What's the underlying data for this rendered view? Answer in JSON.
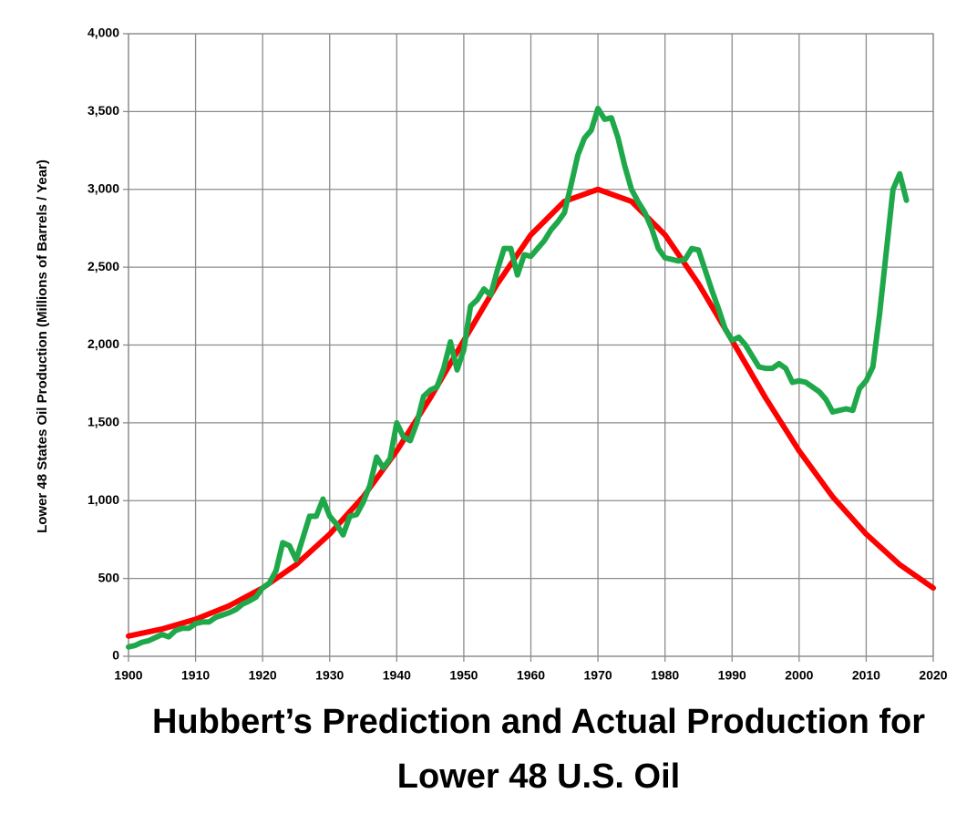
{
  "chart_data": {
    "type": "line",
    "title": "Hubbert’s Prediction and Actual Production for Lower 48 U.S. Oil",
    "ylabel": "Lower 48 States Oil Production (Millions of Barrels / Year)",
    "xlim": [
      1900,
      2020
    ],
    "xticks": [
      1900,
      1910,
      1920,
      1930,
      1940,
      1950,
      1960,
      1970,
      1980,
      1990,
      2000,
      2010,
      2020
    ],
    "ylim": [
      0,
      4000
    ],
    "yticks": [
      0,
      500,
      {
        "value": 1000,
        "label": "1,000"
      },
      {
        "value": 1500,
        "label": "1,500"
      },
      {
        "value": 2000,
        "label": "2,000"
      },
      {
        "value": 2500,
        "label": "2,500"
      },
      {
        "value": 3000,
        "label": "3,000"
      },
      {
        "value": 3500,
        "label": "3,500"
      },
      {
        "value": 4000,
        "label": "4,000"
      }
    ],
    "grid": true,
    "series": [
      {
        "color": "#ff0000",
        "x": [
          1900,
          1905,
          1910,
          1915,
          1920,
          1925,
          1930,
          1935,
          1940,
          1945,
          1950,
          1955,
          1960,
          1965,
          1970,
          1975,
          1980,
          1985,
          1990,
          1995,
          2000,
          2005,
          2010,
          2015,
          2020
        ],
        "values": [
          130,
          175,
          238,
          324,
          439,
          589,
          785,
          1025,
          1320,
          1660,
          2029,
          2393,
          2708,
          2923,
          3000,
          2923,
          2708,
          2393,
          2029,
          1660,
          1320,
          1025,
          785,
          589,
          439
        ]
      },
      {
        "color": "#1fa84a",
        "x": [
          1900,
          1901,
          1902,
          1903,
          1904,
          1905,
          1906,
          1907,
          1908,
          1909,
          1910,
          1911,
          1912,
          1913,
          1914,
          1915,
          1916,
          1917,
          1918,
          1919,
          1920,
          1921,
          1922,
          1923,
          1924,
          1925,
          1926,
          1927,
          1928,
          1929,
          1930,
          1931,
          1932,
          1933,
          1934,
          1935,
          1936,
          1937,
          1938,
          1939,
          1940,
          1941,
          1942,
          1943,
          1944,
          1945,
          1946,
          1947,
          1948,
          1949,
          1950,
          1951,
          1952,
          1953,
          1954,
          1955,
          1956,
          1957,
          1958,
          1959,
          1960,
          1961,
          1962,
          1963,
          1964,
          1965,
          1966,
          1967,
          1968,
          1969,
          1970,
          1971,
          1972,
          1973,
          1974,
          1975,
          1976,
          1977,
          1978,
          1979,
          1980,
          1981,
          1982,
          1983,
          1984,
          1985,
          1986,
          1987,
          1988,
          1989,
          1990,
          1991,
          1992,
          1993,
          1994,
          1995,
          1996,
          1997,
          1998,
          1999,
          2000,
          2001,
          2002,
          2003,
          2004,
          2005,
          2006,
          2007,
          2008,
          2009,
          2010,
          2011,
          2012,
          2013,
          2014,
          2015,
          2016
        ],
        "values": [
          60,
          70,
          90,
          100,
          120,
          140,
          125,
          165,
          180,
          180,
          210,
          220,
          220,
          250,
          265,
          280,
          300,
          335,
          355,
          380,
          440,
          470,
          550,
          730,
          710,
          620,
          760,
          900,
          900,
          1010,
          900,
          850,
          780,
          900,
          910,
          990,
          1100,
          1280,
          1210,
          1270,
          1500,
          1410,
          1385,
          1500,
          1670,
          1710,
          1730,
          1850,
          2020,
          1840,
          1970,
          2250,
          2290,
          2360,
          2320,
          2480,
          2620,
          2620,
          2450,
          2580,
          2570,
          2620,
          2670,
          2740,
          2790,
          2850,
          3030,
          3220,
          3330,
          3380,
          3520,
          3450,
          3460,
          3330,
          3150,
          3000,
          2920,
          2850,
          2750,
          2620,
          2560,
          2550,
          2540,
          2550,
          2620,
          2610,
          2480,
          2350,
          2230,
          2100,
          2030,
          2050,
          2000,
          1930,
          1860,
          1850,
          1850,
          1880,
          1850,
          1760,
          1770,
          1760,
          1730,
          1700,
          1650,
          1570,
          1580,
          1590,
          1580,
          1720,
          1770,
          1860,
          2200,
          2600,
          3000,
          3100,
          2930
        ]
      }
    ]
  }
}
